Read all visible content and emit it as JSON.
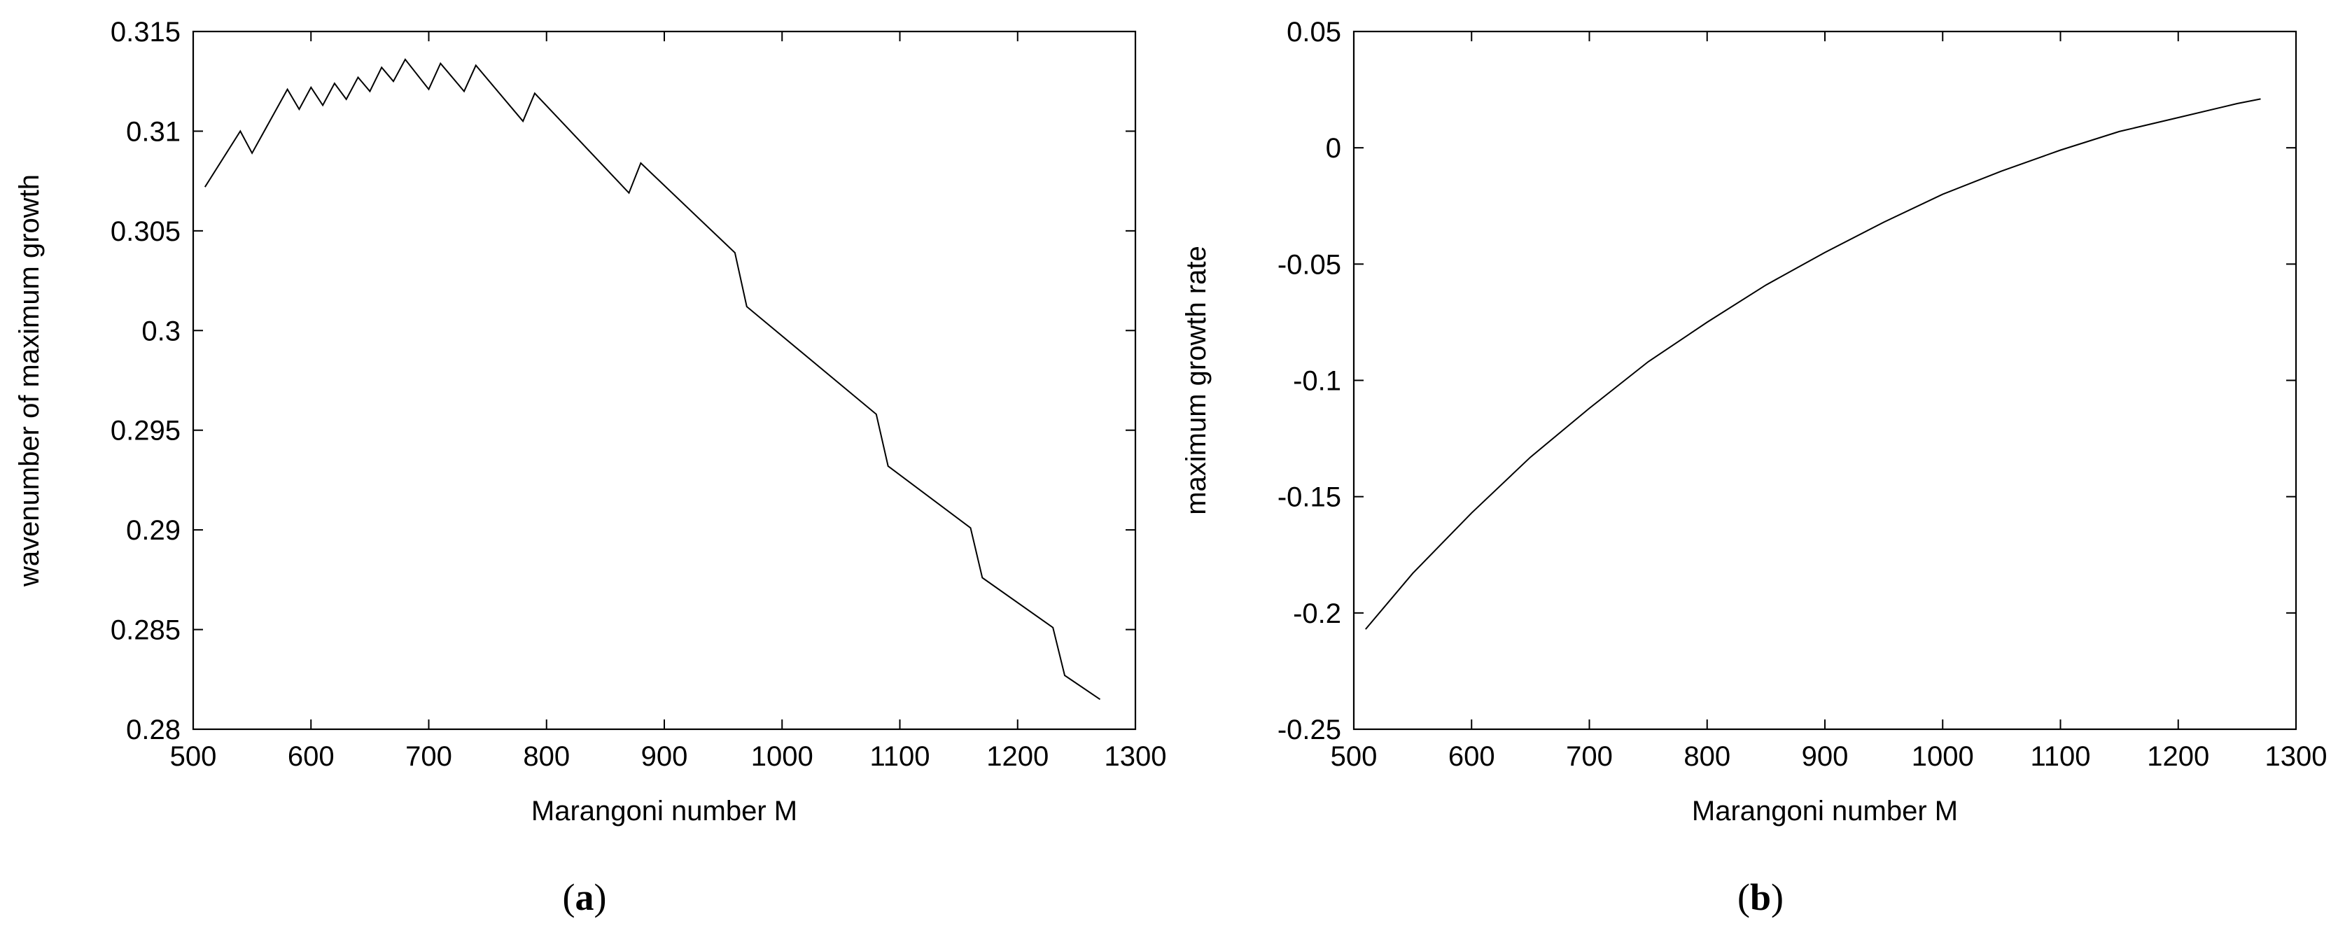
{
  "chart_data": [
    {
      "type": "line",
      "panel_label": "a",
      "xlabel": "Marangoni number M",
      "ylabel": "wavenumber of maximum growth",
      "xlim": [
        500,
        1300
      ],
      "ylim": [
        0.28,
        0.315
      ],
      "x_ticks": [
        "500",
        "600",
        "700",
        "800",
        "900",
        "1000",
        "1100",
        "1200",
        "1300"
      ],
      "y_ticks": [
        "0.28",
        "0.285",
        "0.29",
        "0.295",
        "0.3",
        "0.305",
        "0.31",
        "0.315"
      ],
      "grid": false,
      "legend": "none",
      "series": [
        {
          "x": [
            510,
            540,
            550,
            580,
            590,
            600,
            610,
            620,
            630,
            640,
            650,
            660,
            670,
            680,
            700,
            710,
            730,
            740,
            780,
            790,
            870,
            880,
            960,
            970,
            1080,
            1090,
            1160,
            1170,
            1230,
            1240,
            1270
          ],
          "y": [
            0.3072,
            0.31,
            0.3089,
            0.3121,
            0.3111,
            0.3122,
            0.3113,
            0.3124,
            0.3116,
            0.3127,
            0.312,
            0.3132,
            0.3125,
            0.3136,
            0.3121,
            0.3134,
            0.312,
            0.3133,
            0.3105,
            0.3119,
            0.3069,
            0.3084,
            0.3039,
            0.3012,
            0.2958,
            0.2932,
            0.2901,
            0.2876,
            0.2851,
            0.2827,
            0.2815
          ]
        }
      ]
    },
    {
      "type": "line",
      "panel_label": "b",
      "xlabel": "Marangoni number M",
      "ylabel": "maximum growth rate",
      "xlim": [
        500,
        1300
      ],
      "ylim": [
        -0.25,
        0.05
      ],
      "x_ticks": [
        "500",
        "600",
        "700",
        "800",
        "900",
        "1000",
        "1100",
        "1200",
        "1300"
      ],
      "y_ticks": [
        "-0.25",
        "-0.2",
        "-0.15",
        "-0.1",
        "-0.05",
        "0",
        "0.05"
      ],
      "grid": false,
      "legend": "none",
      "series": [
        {
          "x": [
            510,
            550,
            600,
            650,
            700,
            750,
            800,
            850,
            900,
            950,
            1000,
            1050,
            1100,
            1150,
            1200,
            1250,
            1270
          ],
          "y": [
            -0.207,
            -0.183,
            -0.157,
            -0.133,
            -0.112,
            -0.092,
            -0.075,
            -0.059,
            -0.045,
            -0.032,
            -0.02,
            -0.01,
            -0.001,
            0.007,
            0.013,
            0.019,
            0.021
          ]
        }
      ]
    }
  ],
  "captions": [
    {
      "open": "(",
      "letter": "a",
      "close": ")"
    },
    {
      "open": "(",
      "letter": "b",
      "close": ")"
    }
  ]
}
